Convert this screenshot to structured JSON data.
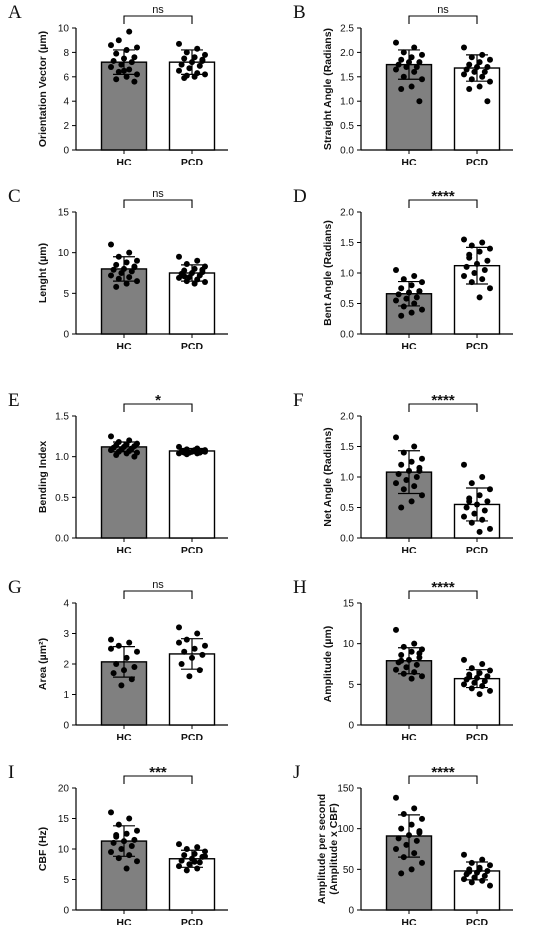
{
  "panels": [
    {
      "letter": "A",
      "ylabel": "Orientation Vector (µm)",
      "categories": [
        "HC",
        "PCD"
      ],
      "ylim": [
        0,
        10
      ],
      "ticks": [
        0,
        2,
        4,
        6,
        8,
        10
      ],
      "tick_labels": [
        "0",
        "2",
        "4",
        "6",
        "8",
        "10"
      ],
      "means": [
        7.2,
        7.2
      ],
      "sd": [
        1.0,
        1.0
      ],
      "significance": "ns",
      "points": [
        [
          8.6,
          9.7,
          9.0,
          8.4,
          8.2,
          7.9,
          7.6,
          7.5,
          7.3,
          7.2,
          7.0,
          6.8,
          6.6,
          6.4,
          6.2,
          6.0,
          5.8,
          5.6,
          6.5
        ],
        [
          8.7,
          8.3,
          8.0,
          7.8,
          7.6,
          7.5,
          7.3,
          7.2,
          7.0,
          6.9,
          6.7,
          6.5,
          6.3,
          6.1,
          6.2,
          6.0,
          5.9,
          7.4
        ]
      ]
    },
    {
      "letter": "B",
      "ylabel": "Straight Angle (Radians)",
      "categories": [
        "HC",
        "PCD"
      ],
      "ylim": [
        0,
        2.5
      ],
      "ticks": [
        0,
        0.5,
        1,
        1.5,
        2,
        2.5
      ],
      "tick_labels": [
        "0.0",
        "0.5",
        "1.0",
        "1.5",
        "2.0",
        "2.5"
      ],
      "means": [
        1.75,
        1.68
      ],
      "sd": [
        0.3,
        0.27
      ],
      "significance": "ns",
      "points": [
        [
          2.2,
          2.1,
          2.0,
          1.95,
          1.9,
          1.85,
          1.8,
          1.8,
          1.75,
          1.7,
          1.7,
          1.65,
          1.6,
          1.5,
          1.45,
          1.3,
          1.25,
          1.0
        ],
        [
          2.1,
          1.95,
          1.9,
          1.85,
          1.8,
          1.75,
          1.7,
          1.7,
          1.65,
          1.6,
          1.6,
          1.55,
          1.5,
          1.45,
          1.4,
          1.3,
          1.25,
          1.0
        ]
      ]
    },
    {
      "letter": "C",
      "ylabel": "Lenght (µm)",
      "categories": [
        "HC",
        "PCD"
      ],
      "ylim": [
        0,
        15
      ],
      "ticks": [
        0,
        5,
        10,
        15
      ],
      "tick_labels": [
        "0",
        "5",
        "10",
        "15"
      ],
      "means": [
        8.0,
        7.5
      ],
      "sd": [
        1.5,
        1.0
      ],
      "significance": "ns",
      "points": [
        [
          11.0,
          10.0,
          9.5,
          9.0,
          8.8,
          8.5,
          8.2,
          8.0,
          7.9,
          7.7,
          7.5,
          7.2,
          7.0,
          6.8,
          6.5,
          6.2,
          5.8,
          8.3
        ],
        [
          9.5,
          9.0,
          8.6,
          8.3,
          8.0,
          7.8,
          7.6,
          7.5,
          7.4,
          7.2,
          7.0,
          6.9,
          6.7,
          6.5,
          6.4,
          6.2,
          7.1,
          7.9
        ]
      ]
    },
    {
      "letter": "D",
      "ylabel": "Bent Angle (Radians)",
      "categories": [
        "HC",
        "PCD"
      ],
      "ylim": [
        0,
        2.0
      ],
      "ticks": [
        0,
        0.5,
        1.0,
        1.5,
        2.0
      ],
      "tick_labels": [
        "0.0",
        "0.5",
        "1.0",
        "1.5",
        "2.0"
      ],
      "means": [
        0.66,
        1.12
      ],
      "sd": [
        0.2,
        0.3
      ],
      "significance": "****",
      "points": [
        [
          1.05,
          0.95,
          0.9,
          0.85,
          0.8,
          0.75,
          0.7,
          0.68,
          0.65,
          0.6,
          0.58,
          0.55,
          0.5,
          0.45,
          0.4,
          0.35,
          0.3,
          0.7
        ],
        [
          1.55,
          1.5,
          1.45,
          1.4,
          1.35,
          1.3,
          1.2,
          1.15,
          1.1,
          1.05,
          1.0,
          0.95,
          0.9,
          0.85,
          0.75,
          0.6,
          1.25
        ]
      ]
    },
    {
      "letter": "E",
      "ylabel": "Bending Index",
      "categories": [
        "HC",
        "PCD"
      ],
      "ylim": [
        0,
        1.5
      ],
      "ticks": [
        0,
        0.5,
        1.0,
        1.5
      ],
      "tick_labels": [
        "0.0",
        "0.5",
        "1.0",
        "1.5"
      ],
      "means": [
        1.12,
        1.07
      ],
      "sd": [
        0.06,
        0.03
      ],
      "significance": "*",
      "points": [
        [
          1.25,
          1.2,
          1.18,
          1.16,
          1.15,
          1.14,
          1.13,
          1.12,
          1.11,
          1.1,
          1.09,
          1.08,
          1.07,
          1.06,
          1.05,
          1.04,
          1.02,
          1.0
        ],
        [
          1.12,
          1.1,
          1.09,
          1.08,
          1.08,
          1.07,
          1.07,
          1.06,
          1.06,
          1.05,
          1.05,
          1.04,
          1.04,
          1.03,
          1.06,
          1.07,
          1.05
        ]
      ]
    },
    {
      "letter": "F",
      "ylabel": "Net Angle (Radians)",
      "categories": [
        "HC",
        "PCD"
      ],
      "ylim": [
        0,
        2.0
      ],
      "ticks": [
        0,
        0.5,
        1.0,
        1.5,
        2.0
      ],
      "tick_labels": [
        "0.0",
        "0.5",
        "1.0",
        "1.5",
        "2.0"
      ],
      "means": [
        1.08,
        0.55
      ],
      "sd": [
        0.35,
        0.27
      ],
      "significance": "****",
      "points": [
        [
          1.65,
          1.5,
          1.4,
          1.3,
          1.25,
          1.2,
          1.15,
          1.1,
          1.05,
          1.0,
          0.95,
          0.9,
          0.85,
          0.8,
          0.7,
          0.6,
          0.5,
          1.1
        ],
        [
          1.2,
          1.0,
          0.9,
          0.8,
          0.7,
          0.65,
          0.6,
          0.55,
          0.5,
          0.45,
          0.4,
          0.35,
          0.3,
          0.25,
          0.15,
          0.1,
          0.6
        ]
      ]
    },
    {
      "letter": "G",
      "ylabel": "Area (µm²)",
      "categories": [
        "HC",
        "PCD"
      ],
      "ylim": [
        0,
        4
      ],
      "ticks": [
        0,
        1,
        2,
        3,
        4
      ],
      "tick_labels": [
        "0",
        "1",
        "2",
        "3",
        "4"
      ],
      "means": [
        2.07,
        2.33
      ],
      "sd": [
        0.5,
        0.5
      ],
      "significance": "ns",
      "points": [
        [
          2.8,
          2.7,
          2.6,
          2.4,
          2.2,
          2.0,
          1.9,
          1.8,
          1.7,
          1.5,
          1.3,
          2.5
        ],
        [
          3.2,
          3.0,
          2.8,
          2.6,
          2.5,
          2.4,
          2.3,
          2.2,
          2.0,
          1.8,
          1.6,
          2.7
        ]
      ]
    },
    {
      "letter": "H",
      "ylabel": "Amplitude (µm)",
      "categories": [
        "HC",
        "PCD"
      ],
      "ylim": [
        0,
        15
      ],
      "ticks": [
        0,
        5,
        10,
        15
      ],
      "tick_labels": [
        "0",
        "5",
        "10",
        "15"
      ],
      "means": [
        7.9,
        5.7
      ],
      "sd": [
        1.6,
        1.1
      ],
      "significance": "****",
      "points": [
        [
          11.7,
          10.0,
          9.6,
          9.3,
          9.0,
          8.6,
          8.3,
          8.0,
          7.7,
          7.4,
          7.1,
          6.8,
          6.5,
          6.3,
          6.0,
          5.7,
          7.9,
          8.8
        ],
        [
          8.0,
          7.5,
          7.0,
          6.7,
          6.4,
          6.2,
          6.0,
          5.8,
          5.6,
          5.4,
          5.2,
          5.0,
          4.8,
          4.5,
          4.2,
          3.8,
          5.9
        ]
      ]
    },
    {
      "letter": "I",
      "ylabel": "CBF (Hz)",
      "categories": [
        "HC",
        "PCD"
      ],
      "ylim": [
        0,
        20
      ],
      "ticks": [
        0,
        5,
        10,
        15,
        20
      ],
      "tick_labels": [
        "0",
        "5",
        "10",
        "15",
        "20"
      ],
      "means": [
        11.3,
        8.4
      ],
      "sd": [
        2.5,
        1.4
      ],
      "significance": "***",
      "points": [
        [
          16.0,
          15.0,
          14.0,
          13.0,
          12.5,
          12.0,
          11.5,
          11.3,
          11.0,
          10.5,
          10.0,
          9.5,
          9.0,
          8.5,
          8.0,
          6.8,
          12.3
        ],
        [
          10.8,
          10.3,
          10.0,
          9.6,
          9.2,
          9.0,
          8.7,
          8.4,
          8.1,
          7.8,
          7.5,
          7.2,
          6.8,
          6.5,
          8.8,
          7.9
        ]
      ]
    },
    {
      "letter": "J",
      "ylabel": "Amplitude per second",
      "ylabel2": "(Amplitude x CBF)",
      "categories": [
        "HC",
        "PCD"
      ],
      "ylim": [
        0,
        150
      ],
      "ticks": [
        0,
        50,
        100,
        150
      ],
      "tick_labels": [
        "0",
        "50",
        "100",
        "150"
      ],
      "means": [
        91,
        48
      ],
      "sd": [
        26,
        11
      ],
      "significance": "****",
      "points": [
        [
          138,
          125,
          118,
          112,
          105,
          100,
          95,
          92,
          88,
          85,
          80,
          75,
          70,
          65,
          58,
          50,
          45,
          97
        ],
        [
          68,
          62,
          58,
          55,
          52,
          50,
          48,
          46,
          44,
          42,
          40,
          38,
          36,
          34,
          30,
          50,
          47
        ]
      ]
    }
  ],
  "colors": {
    "hc_bar": "#808080",
    "pcd_bar": "#ffffff",
    "outline": "#000000",
    "dot": "#000000"
  }
}
